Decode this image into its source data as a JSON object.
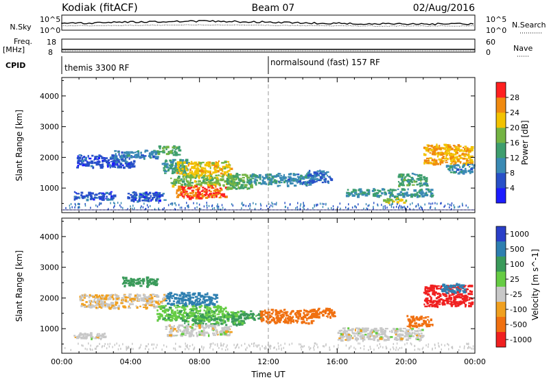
{
  "header": {
    "station": "Kodiak (fitACF)",
    "beam": "Beam 07",
    "date": "02/Aug/2016"
  },
  "top_panels": {
    "nsky": {
      "label": "N.Sky",
      "ticks": [
        "10^5",
        "10^0"
      ],
      "right_label": "N.Search",
      "right_ticks": [
        "10^5",
        "10^0"
      ]
    },
    "freq": {
      "label": "Freq.",
      "unit": "[MHz]",
      "ticks": [
        "18",
        "8"
      ],
      "right_label": "Nave",
      "right_ticks": [
        "60",
        "0"
      ]
    },
    "cpid": {
      "label": "CPID",
      "segments": [
        {
          "text": "themis 3300 RF",
          "start_hour": 0,
          "end_hour": 12
        },
        {
          "text": "normalsound (fast) 157 RF",
          "start_hour": 12,
          "end_hour": 24
        }
      ]
    }
  },
  "chart_data": [
    {
      "type": "heatmap",
      "quantity": "Power",
      "xlabel": "",
      "ylabel": "Slant Range [km]",
      "xlim": [
        0,
        24
      ],
      "ylim": [
        200,
        4600
      ],
      "y_ticks": [
        1000,
        2000,
        3000,
        4000
      ],
      "colorbar": {
        "label": "Power [dB]",
        "range": [
          0,
          32
        ],
        "ticks": [
          4,
          8,
          12,
          16,
          20,
          24,
          28
        ],
        "colors": [
          "#1c1cff",
          "#2850c8",
          "#3a8ab4",
          "#3e9e6e",
          "#74b444",
          "#f2c200",
          "#f08a10",
          "#ff2020"
        ]
      },
      "echo_regions": [
        {
          "x": [
            0.7,
            3.0
          ],
          "y": [
            650,
            900
          ],
          "value": 6
        },
        {
          "x": [
            0.8,
            4.2
          ],
          "y": [
            1700,
            2100
          ],
          "value": 6
        },
        {
          "x": [
            3.0,
            5.5
          ],
          "y": [
            2000,
            2250
          ],
          "value": 10
        },
        {
          "x": [
            3.8,
            6.0
          ],
          "y": [
            600,
            900
          ],
          "value": 6
        },
        {
          "x": [
            5.5,
            6.8
          ],
          "y": [
            2100,
            2400
          ],
          "value": 16
        },
        {
          "x": [
            5.8,
            7.3
          ],
          "y": [
            1500,
            1950
          ],
          "value": 12
        },
        {
          "x": [
            6.6,
            9.8
          ],
          "y": [
            1450,
            1900
          ],
          "value": 22
        },
        {
          "x": [
            6.3,
            10.2
          ],
          "y": [
            1100,
            1450
          ],
          "value": 18
        },
        {
          "x": [
            6.6,
            9.5
          ],
          "y": [
            700,
            1100
          ],
          "value": 28
        },
        {
          "x": [
            9.5,
            11.0
          ],
          "y": [
            1000,
            1500
          ],
          "value": 16
        },
        {
          "x": [
            10.8,
            12.5
          ],
          "y": [
            1150,
            1500
          ],
          "value": 12
        },
        {
          "x": [
            12.5,
            14.6
          ],
          "y": [
            1100,
            1500
          ],
          "value": 10
        },
        {
          "x": [
            14.2,
            15.6
          ],
          "y": [
            1200,
            1600
          ],
          "value": 8
        },
        {
          "x": [
            16.5,
            21.5
          ],
          "y": [
            750,
            1000
          ],
          "value": 12
        },
        {
          "x": [
            18.6,
            20.0
          ],
          "y": [
            550,
            700
          ],
          "value": 20
        },
        {
          "x": [
            19.5,
            21.2
          ],
          "y": [
            1100,
            1500
          ],
          "value": 14
        },
        {
          "x": [
            21.0,
            23.8
          ],
          "y": [
            1800,
            2450
          ],
          "value": 24
        },
        {
          "x": [
            22.3,
            23.9
          ],
          "y": [
            1500,
            1800
          ],
          "value": 10
        }
      ]
    },
    {
      "type": "heatmap",
      "quantity": "Velocity",
      "xlabel": "Time UT",
      "ylabel": "Slant Range [km]",
      "xlim": [
        0,
        24
      ],
      "ylim": [
        200,
        4600
      ],
      "y_ticks": [
        1000,
        2000,
        3000,
        4000
      ],
      "x_ticks": [
        "00:00",
        "04:00",
        "08:00",
        "12:00",
        "16:00",
        "20:00",
        "00:00"
      ],
      "colorbar": {
        "label": "Velocity [m s^-1]",
        "ticks": [
          "1000",
          "500",
          "100",
          "25",
          "-25",
          "-100",
          "-500",
          "-1000"
        ],
        "colors": [
          "#2a3fc8",
          "#2e7fb0",
          "#3a9a5a",
          "#66cc44",
          "#c8c8c8",
          "#f0a020",
          "#f07010",
          "#f02020"
        ]
      },
      "echo_regions": [
        {
          "x": [
            1.0,
            6.0
          ],
          "y": [
            1700,
            2150
          ],
          "value": -20
        },
        {
          "x": [
            3.5,
            5.5
          ],
          "y": [
            2400,
            2700
          ],
          "value": 150
        },
        {
          "x": [
            5.5,
            9.5
          ],
          "y": [
            1300,
            1800
          ],
          "value": 80
        },
        {
          "x": [
            6.0,
            9.0
          ],
          "y": [
            1800,
            2200
          ],
          "value": 600
        },
        {
          "x": [
            7.0,
            10.5
          ],
          "y": [
            1150,
            1450
          ],
          "value": 110
        },
        {
          "x": [
            6.0,
            9.8
          ],
          "y": [
            800,
            1150
          ],
          "value": 0
        },
        {
          "x": [
            9.5,
            11.5
          ],
          "y": [
            1300,
            1600
          ],
          "value": 110
        },
        {
          "x": [
            11.5,
            14.5
          ],
          "y": [
            1200,
            1650
          ],
          "value": -150
        },
        {
          "x": [
            14.0,
            15.8
          ],
          "y": [
            1400,
            1700
          ],
          "value": -150
        },
        {
          "x": [
            16.0,
            21.0
          ],
          "y": [
            650,
            1050
          ],
          "value": 0
        },
        {
          "x": [
            0.5,
            2.5
          ],
          "y": [
            700,
            900
          ],
          "value": 0
        },
        {
          "x": [
            20.0,
            21.5
          ],
          "y": [
            1100,
            1450
          ],
          "value": -300
        },
        {
          "x": [
            21.0,
            23.8
          ],
          "y": [
            1750,
            2450
          ],
          "value": -600
        },
        {
          "x": [
            22.0,
            23.5
          ],
          "y": [
            2200,
            2500
          ],
          "value": 700
        }
      ]
    }
  ]
}
